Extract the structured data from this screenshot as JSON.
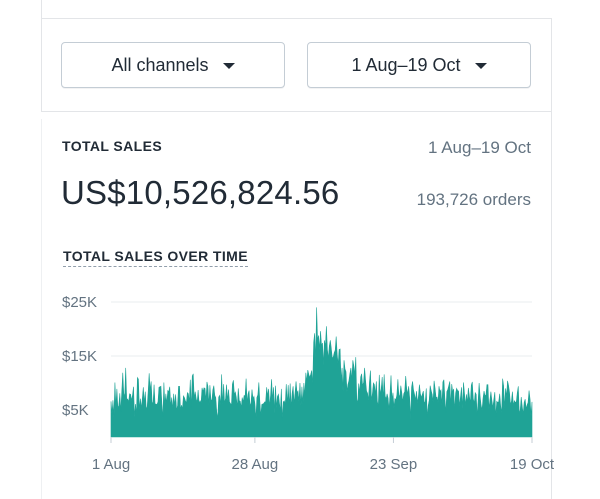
{
  "filters": {
    "channels_label": "All channels",
    "date_label": "1 Aug–19 Oct"
  },
  "summary": {
    "label": "TOTAL SALES",
    "date_range": "1 Aug–19 Oct",
    "amount": "US$10,526,824.56",
    "orders": "193,726 orders"
  },
  "chart": {
    "title": "TOTAL SALES OVER TIME"
  },
  "icons": {
    "caret": "chevron-down-icon"
  },
  "colors": {
    "series": "#1fa396",
    "gridline": "#eaecef",
    "axis_text": "#637381"
  },
  "chart_data": {
    "type": "area",
    "title": "TOTAL SALES OVER TIME",
    "xlabel": "",
    "ylabel": "",
    "ylim": [
      0,
      27000
    ],
    "y_ticks": [
      {
        "value": 25000,
        "label": "$25K"
      },
      {
        "value": 15000,
        "label": "$15K"
      },
      {
        "value": 5000,
        "label": "$5K"
      }
    ],
    "x_ticks": [
      {
        "hour": 0,
        "label": "1 Aug"
      },
      {
        "hour": 648,
        "label": "28 Aug"
      },
      {
        "hour": 1272,
        "label": "23 Sep"
      },
      {
        "hour": 1896,
        "label": "19 Oct"
      }
    ],
    "x_range": [
      0,
      1896
    ],
    "grid": true,
    "legend": "none",
    "series": [
      {
        "name": "",
        "color": "#1fa396",
        "values": [
          6600,
          4400,
          6800,
          3800,
          10100,
          5500,
          8900,
          5400,
          5800,
          8100,
          4700,
          8300,
          11900,
          8100,
          7400,
          12800,
          7100,
          7000,
          6500,
          8000,
          7900,
          6700,
          7800,
          9300,
          3700,
          6100,
          4300,
          11000,
          10700,
          5000,
          7100,
          5300,
          7100,
          9200,
          6300,
          8400,
          5100,
          5600,
          8500,
          11800,
          8600,
          10300,
          6400,
          6300,
          9700,
          6100,
          6100,
          6000,
          6500,
          9200,
          9300,
          9400,
          6100,
          3500,
          10100,
          5900,
          8000,
          6200,
          8600,
          8400,
          9300,
          5700,
          7300,
          5100,
          8000,
          5800,
          7900,
          4900,
          5800,
          9400,
          9400,
          5100,
          5900,
          5200,
          7600,
          7300,
          6700,
          6300,
          8200,
          8000,
          6500,
          10600,
          5300,
          11300,
          11700,
          7100,
          8400,
          7100,
          6400,
          8700,
          6200,
          6700,
          6300,
          9100,
          8400,
          9100,
          9000,
          6700,
          10200,
          9400,
          5900,
          9600,
          7000,
          6600,
          8700,
          9500,
          7700,
          7300,
          4600,
          3300,
          7400,
          7700,
          5700,
          11600,
          6000,
          9800,
          6300,
          7100,
          9700,
          6700,
          8800,
          6500,
          6200,
          5900,
          9800,
          10500,
          7900,
          8300,
          7300,
          5500,
          9000,
          6700,
          6600,
          5400,
          7300,
          6500,
          7700,
          7600,
          10800,
          6300,
          8000,
          8600,
          5700,
          6300,
          8800,
          7100,
          7500,
          6100,
          3300,
          7300,
          7800,
          10100,
          6600,
          3900,
          6000,
          6100,
          6200,
          6500,
          6500,
          9200,
          7600,
          8900,
          5600,
          7700,
          10700,
          6800,
          9200,
          4400,
          9500,
          5400,
          7500,
          7900,
          6300,
          4800,
          8900,
          3100,
          6500,
          6700,
          6000,
          9800,
          6100,
          9600,
          5700,
          9900,
          5400,
          8100,
          9400,
          6100,
          8200,
          10300,
          8200,
          8500,
          6600,
          10000,
          5800,
          9300,
          6100,
          10000,
          7700,
          11900,
          10300,
          12400,
          11600,
          11000,
          11600,
          12300,
          9500,
          17500,
          19200,
          14000,
          24000,
          17900,
          18800,
          16100,
          19600,
          17000,
          17400,
          13300,
          17900,
          16700,
          20500,
          16200,
          14500,
          16900,
          17900,
          16400,
          14600,
          14800,
          15600,
          16100,
          18600,
          15300,
          13400,
          16200,
          16300,
          10400,
          12800,
          8500,
          14200,
          12600,
          12100,
          8400,
          9700,
          10400,
          11700,
          12800,
          10500,
          14200,
          13200,
          11500,
          14800,
          7000,
          6200,
          9900,
          8100,
          11100,
          11700,
          9500,
          10100,
          12800,
          10500,
          8500,
          8100,
          6800,
          10200,
          12300,
          6800,
          8000,
          10000,
          9700,
          7900,
          10300,
          6600,
          5600,
          11500,
          7800,
          8900,
          11100,
          6800,
          11600,
          7600,
          7000,
          8000,
          7200,
          4900,
          8100,
          11400,
          6800,
          8200,
          5400,
          7100,
          6900,
          7800,
          10700,
          7700,
          7600,
          9500,
          8200,
          6500,
          8000,
          8400,
          11300,
          9000,
          7900,
          9400,
          7300,
          3200,
          9200,
          10300,
          8700,
          7900,
          6800,
          8500,
          6300,
          7500,
          9700,
          8000,
          7300,
          7900,
          8500,
          6200,
          6600,
          9000,
          3600,
          5800,
          6800,
          9500,
          8600,
          7900,
          6500,
          10400,
          9000,
          7300,
          7400,
          6400,
          9400,
          8400,
          8700,
          5900,
          10200,
          10600,
          7200,
          4500,
          8400,
          8800,
          9500,
          10300,
          5800,
          9800,
          8300,
          8900,
          5000,
          8100,
          9000,
          8600,
          8500,
          5700,
          7500,
          9200,
          5200,
          10100,
          8200,
          5800,
          7900,
          6400,
          9100,
          7600,
          6200,
          9600,
          10200,
          7100,
          6200,
          8200,
          7900,
          3800,
          6700,
          10000,
          7500,
          5900,
          5000,
          7200,
          8500,
          7600,
          7800,
          9700,
          9700,
          5200,
          6800,
          8400,
          6800,
          5400,
          6900,
          8300,
          3700,
          6600,
          6400,
          6500,
          8000,
          5700,
          4400,
          10800,
          9500,
          5300,
          9000,
          7400,
          10400,
          9600,
          8300,
          6000,
          6600,
          8400,
          5800,
          6700,
          6400,
          6500,
          8200,
          9400,
          4300,
          5000,
          7400,
          5700,
          4200,
          6400,
          7000,
          5200,
          5900,
          6400,
          8600,
          7000,
          3900,
          6500
        ]
      }
    ]
  }
}
